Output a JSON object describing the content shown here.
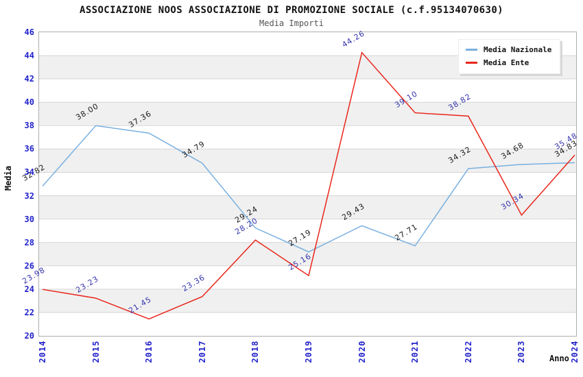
{
  "header": {
    "title": "ASSOCIAZIONE NOOS ASSOCIAZIONE DI PROMOZIONE SOCIALE (c.f.95134070630)",
    "subtitle": "Media Importi"
  },
  "chart_data": {
    "type": "line",
    "title": "ASSOCIAZIONE NOOS ASSOCIAZIONE DI PROMOZIONE SOCIALE (c.f.95134070630)",
    "subtitle": "Media Importi",
    "x": [
      "2014",
      "2015",
      "2016",
      "2017",
      "2018",
      "2019",
      "2020",
      "2021",
      "2022",
      "2023",
      "2024"
    ],
    "series": [
      {
        "name": "Media Nazionale",
        "color": "#78B0E0",
        "label_color": "#1a1a1a",
        "values": [
          32.82,
          38.0,
          37.36,
          34.79,
          29.24,
          27.19,
          29.43,
          27.71,
          34.32,
          34.68,
          34.83
        ]
      },
      {
        "name": "Media Ente",
        "color": "#E8251A",
        "label_color": "#3434AC",
        "values": [
          23.98,
          23.23,
          21.45,
          23.36,
          28.2,
          25.16,
          44.26,
          39.1,
          38.82,
          30.34,
          35.48
        ]
      }
    ],
    "xlabel": "Anno",
    "ylabel": "Media",
    "ylim": [
      20,
      46
    ],
    "ytick_step": 2,
    "grid": true,
    "legend_position": "top-right",
    "colors": {
      "tick_label": "#2222CC",
      "band": "#F0F0F0",
      "grid_line": "#D6D6D6",
      "plot_border": "#AEAEAE",
      "subtitle": "#555555"
    }
  }
}
